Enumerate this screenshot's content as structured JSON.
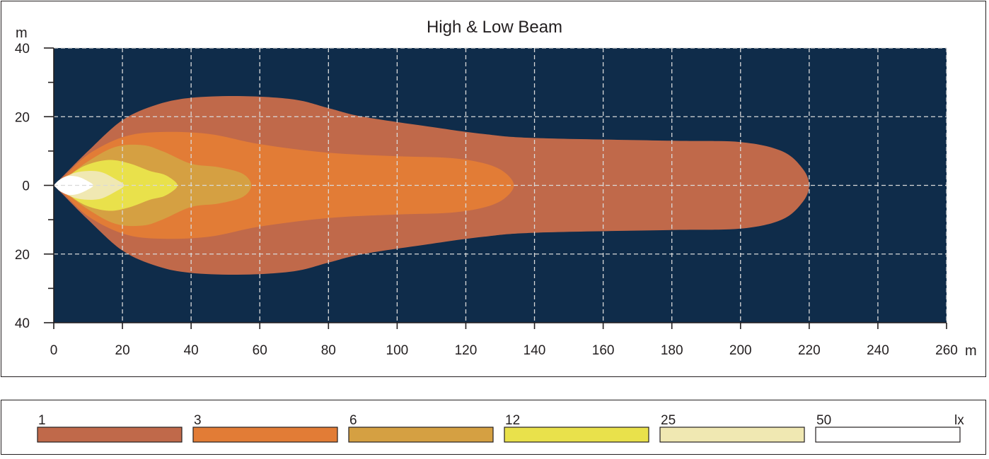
{
  "chart_data": {
    "type": "heatmap",
    "title": "High & Low Beam",
    "xlabel": "m",
    "ylabel": "m",
    "xlim": [
      0,
      260
    ],
    "ylim": [
      -40,
      40
    ],
    "x_ticks": [
      0,
      20,
      40,
      60,
      80,
      100,
      120,
      140,
      160,
      180,
      200,
      220,
      240,
      260
    ],
    "y_ticks": [
      40,
      20,
      0,
      -20,
      -40
    ],
    "y_tick_labels": [
      "40",
      "20",
      "0",
      "20",
      "40"
    ],
    "grid": true,
    "background_color": "#0f2c4a",
    "unit": "lx",
    "levels": [
      {
        "value": "1",
        "color": "#c0694a",
        "upper": [
          [
            0,
            0
          ],
          [
            3,
            3
          ],
          [
            10,
            10
          ],
          [
            20,
            19
          ],
          [
            30,
            23.5
          ],
          [
            40,
            25.5
          ],
          [
            55,
            26
          ],
          [
            70,
            25
          ],
          [
            80,
            22.5
          ],
          [
            90,
            20
          ],
          [
            110,
            17
          ],
          [
            125,
            15
          ],
          [
            140,
            13.8
          ],
          [
            180,
            13
          ],
          [
            200,
            12.6
          ],
          [
            212,
            10
          ],
          [
            218,
            5
          ],
          [
            220,
            0
          ]
        ]
      },
      {
        "value": "3",
        "color": "#e27c36",
        "upper": [
          [
            0,
            0
          ],
          [
            3,
            2.5
          ],
          [
            10,
            9
          ],
          [
            20,
            14
          ],
          [
            30,
            15.5
          ],
          [
            45,
            15
          ],
          [
            60,
            12
          ],
          [
            80,
            9.5
          ],
          [
            100,
            8.5
          ],
          [
            115,
            8
          ],
          [
            125,
            6.5
          ],
          [
            131,
            4
          ],
          [
            134,
            0
          ]
        ]
      },
      {
        "value": "6",
        "color": "#d5a042",
        "upper": [
          [
            0,
            0
          ],
          [
            3,
            1.8
          ],
          [
            10,
            7
          ],
          [
            18,
            11.2
          ],
          [
            26,
            11.7
          ],
          [
            32,
            9.8
          ],
          [
            40,
            6.3
          ],
          [
            48,
            5.3
          ],
          [
            55,
            3.4
          ],
          [
            57.5,
            0
          ]
        ]
      },
      {
        "value": "12",
        "color": "#e9e14b",
        "upper": [
          [
            0,
            0
          ],
          [
            3,
            1.8
          ],
          [
            9,
            5.7
          ],
          [
            16,
            7.4
          ],
          [
            22,
            6.4
          ],
          [
            28,
            4.2
          ],
          [
            32,
            3.2
          ],
          [
            35,
            1.4
          ],
          [
            36,
            0
          ]
        ]
      },
      {
        "value": "25",
        "color": "#f0e8b2",
        "upper": [
          [
            0,
            0
          ],
          [
            2,
            1.8
          ],
          [
            6,
            3.6
          ],
          [
            10,
            4.2
          ],
          [
            14,
            3.8
          ],
          [
            18,
            1.8
          ],
          [
            20.5,
            0
          ]
        ]
      },
      {
        "value": "50",
        "color": "#ffffff",
        "upper": [
          [
            0,
            0
          ],
          [
            1.5,
            1.5
          ],
          [
            4,
            2.7
          ],
          [
            7,
            2.5
          ],
          [
            10,
            1.2
          ],
          [
            11.5,
            0
          ]
        ]
      }
    ]
  }
}
